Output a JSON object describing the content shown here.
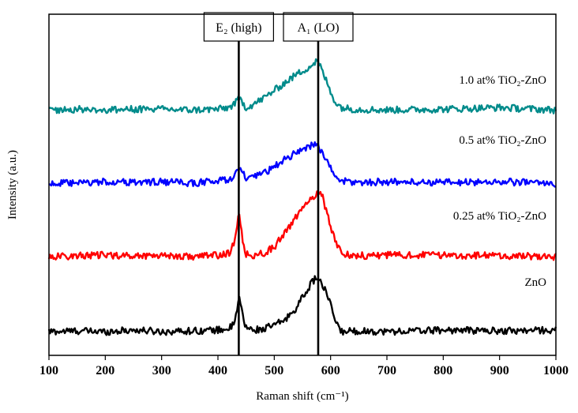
{
  "chart_data": {
    "type": "line",
    "xlabel": "Raman shift (cm⁻¹)",
    "ylabel": "Intensity (a.u.)",
    "xlim": [
      100,
      1000
    ],
    "xticks": [
      100,
      200,
      300,
      400,
      500,
      600,
      700,
      800,
      900,
      1000
    ],
    "yticks_shown": false,
    "grid": false,
    "annotations": [
      {
        "label": "E₂ (high)",
        "x": 437
      },
      {
        "label": "A₁ (LO)",
        "x": 578
      }
    ],
    "series": [
      {
        "name": "ZnO",
        "color": "#000000",
        "offset": 0,
        "x": [
          100,
          150,
          200,
          250,
          300,
          350,
          400,
          420,
          430,
          435,
          438,
          441,
          445,
          450,
          460,
          480,
          500,
          520,
          540,
          555,
          565,
          575,
          580,
          590,
          600,
          610,
          615,
          620,
          640,
          700,
          800,
          900,
          1000
        ],
        "values": [
          0.0,
          0.01,
          0.0,
          0.02,
          0.0,
          0.01,
          0.02,
          0.04,
          0.1,
          0.32,
          0.42,
          0.32,
          0.14,
          0.06,
          0.02,
          0.03,
          0.08,
          0.15,
          0.3,
          0.48,
          0.58,
          0.68,
          0.62,
          0.52,
          0.32,
          0.12,
          0.03,
          0.0,
          0.01,
          0.0,
          0.02,
          0.01,
          0.02
        ]
      },
      {
        "name": "0.25 at% TiO₂-ZnO",
        "color": "#ff0000",
        "offset": 0.92,
        "x": [
          100,
          150,
          200,
          250,
          300,
          350,
          400,
          420,
          430,
          435,
          438,
          441,
          445,
          450,
          460,
          480,
          500,
          520,
          540,
          555,
          565,
          575,
          580,
          585,
          590,
          600,
          610,
          620,
          640,
          700,
          800,
          900,
          1000
        ],
        "values": [
          0.0,
          0.01,
          0.02,
          0.01,
          0.02,
          0.0,
          0.02,
          0.04,
          0.18,
          0.45,
          0.52,
          0.38,
          0.12,
          0.03,
          0.01,
          0.04,
          0.12,
          0.3,
          0.5,
          0.62,
          0.7,
          0.78,
          0.8,
          0.76,
          0.62,
          0.38,
          0.16,
          0.05,
          0.01,
          0.02,
          0.02,
          0.01,
          0.0
        ]
      },
      {
        "name": "0.5 at% TiO₂-ZnO",
        "color": "#0000ff",
        "offset": 1.82,
        "x": [
          100,
          150,
          200,
          250,
          300,
          350,
          400,
          420,
          430,
          438,
          445,
          450,
          460,
          480,
          500,
          520,
          540,
          555,
          565,
          575,
          580,
          590,
          600,
          610,
          620,
          640,
          700,
          800,
          900,
          1000
        ],
        "values": [
          0.0,
          0.0,
          0.02,
          0.01,
          0.02,
          0.0,
          0.03,
          0.05,
          0.1,
          0.18,
          0.12,
          0.06,
          0.06,
          0.12,
          0.2,
          0.3,
          0.38,
          0.44,
          0.46,
          0.48,
          0.44,
          0.32,
          0.18,
          0.08,
          0.03,
          0.01,
          0.02,
          0.01,
          0.02,
          0.0
        ]
      },
      {
        "name": "1.0 at% TiO₂-ZnO",
        "color": "#008b8b",
        "offset": 2.72,
        "x": [
          100,
          150,
          200,
          250,
          300,
          350,
          400,
          420,
          430,
          438,
          445,
          450,
          460,
          480,
          500,
          520,
          540,
          555,
          565,
          575,
          580,
          590,
          600,
          610,
          620,
          640,
          700,
          800,
          900,
          1000
        ],
        "values": [
          0.0,
          0.01,
          0.0,
          0.01,
          0.01,
          0.0,
          0.01,
          0.03,
          0.08,
          0.14,
          0.08,
          0.03,
          0.06,
          0.14,
          0.24,
          0.34,
          0.44,
          0.5,
          0.54,
          0.6,
          0.56,
          0.4,
          0.22,
          0.08,
          0.03,
          0.01,
          0.0,
          0.01,
          0.03,
          0.0
        ]
      }
    ]
  }
}
